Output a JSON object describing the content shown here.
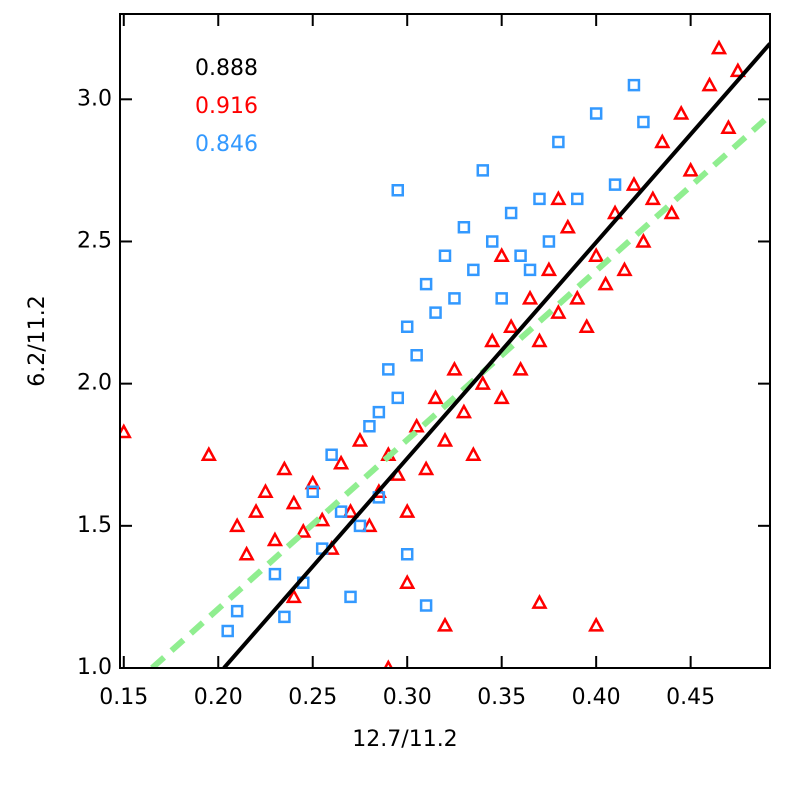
{
  "chart_data": {
    "type": "scatter",
    "xlabel": "12.7/11.2",
    "ylabel": "6.2/11.2",
    "xlim": [
      0.148,
      0.492
    ],
    "ylim": [
      1.0,
      3.3
    ],
    "xticks": [
      {
        "value": 0.15,
        "label": "0.15"
      },
      {
        "value": 0.2,
        "label": "0.20"
      },
      {
        "value": 0.25,
        "label": "0.25"
      },
      {
        "value": 0.3,
        "label": "0.30"
      },
      {
        "value": 0.35,
        "label": "0.35"
      },
      {
        "value": 0.4,
        "label": "0.40"
      },
      {
        "value": 0.45,
        "label": "0.45"
      }
    ],
    "yticks": [
      {
        "value": 1.0,
        "label": "1.0"
      },
      {
        "value": 1.5,
        "label": "1.5"
      },
      {
        "value": 2.0,
        "label": "2.0"
      },
      {
        "value": 2.5,
        "label": "2.5"
      },
      {
        "value": 3.0,
        "label": "3.0"
      }
    ],
    "annotations": [
      {
        "text": "0.888",
        "color": "#000000"
      },
      {
        "text": "0.916",
        "color": "#ff0000"
      },
      {
        "text": "0.846",
        "color": "#3399ff"
      }
    ],
    "series": [
      {
        "marker": "triangle",
        "color": "#ff0000",
        "x": [
          0.15,
          0.195,
          0.21,
          0.215,
          0.22,
          0.225,
          0.23,
          0.235,
          0.24,
          0.245,
          0.25,
          0.255,
          0.26,
          0.265,
          0.27,
          0.275,
          0.28,
          0.285,
          0.29,
          0.295,
          0.3,
          0.305,
          0.31,
          0.315,
          0.32,
          0.325,
          0.33,
          0.335,
          0.34,
          0.345,
          0.35,
          0.355,
          0.36,
          0.365,
          0.37,
          0.375,
          0.38,
          0.385,
          0.39,
          0.395,
          0.4,
          0.405,
          0.41,
          0.415,
          0.42,
          0.425,
          0.43,
          0.435,
          0.44,
          0.445,
          0.45,
          0.46,
          0.465,
          0.47,
          0.475,
          0.24,
          0.32,
          0.37,
          0.4,
          0.29,
          0.35,
          0.38,
          0.3
        ],
        "values": [
          1.83,
          1.75,
          1.5,
          1.4,
          1.55,
          1.62,
          1.45,
          1.7,
          1.58,
          1.48,
          1.65,
          1.52,
          1.42,
          1.72,
          1.55,
          1.8,
          1.5,
          1.62,
          1.75,
          1.68,
          1.55,
          1.85,
          1.7,
          1.95,
          1.8,
          2.05,
          1.9,
          1.75,
          2.0,
          2.15,
          1.95,
          2.2,
          2.05,
          2.3,
          2.15,
          2.4,
          2.25,
          2.55,
          2.3,
          2.2,
          2.45,
          2.35,
          2.6,
          2.4,
          2.7,
          2.5,
          2.65,
          2.85,
          2.6,
          2.95,
          2.75,
          3.05,
          3.18,
          2.9,
          3.1,
          1.25,
          1.15,
          1.23,
          1.15,
          1.0,
          2.45,
          2.65,
          1.3
        ]
      },
      {
        "marker": "square",
        "color": "#3399ff",
        "x": [
          0.205,
          0.21,
          0.23,
          0.235,
          0.245,
          0.25,
          0.255,
          0.26,
          0.265,
          0.27,
          0.275,
          0.28,
          0.285,
          0.29,
          0.295,
          0.3,
          0.305,
          0.31,
          0.315,
          0.32,
          0.325,
          0.33,
          0.335,
          0.34,
          0.345,
          0.35,
          0.355,
          0.36,
          0.365,
          0.37,
          0.375,
          0.38,
          0.39,
          0.4,
          0.41,
          0.42,
          0.425,
          0.295,
          0.3,
          0.31,
          0.285
        ],
        "values": [
          1.13,
          1.2,
          1.33,
          1.18,
          1.3,
          1.62,
          1.42,
          1.75,
          1.55,
          1.25,
          1.5,
          1.85,
          1.9,
          2.05,
          1.95,
          2.2,
          2.1,
          2.35,
          2.25,
          2.45,
          2.3,
          2.55,
          2.4,
          2.75,
          2.5,
          2.3,
          2.6,
          2.45,
          2.4,
          2.65,
          2.5,
          2.85,
          2.65,
          2.95,
          2.7,
          3.05,
          2.92,
          2.68,
          1.4,
          1.22,
          1.6
        ]
      },
      {
        "marker": "line",
        "color": "#90ee90",
        "dash": true,
        "x": [
          0.165,
          0.492
        ],
        "values": [
          1.0,
          2.944
        ]
      },
      {
        "marker": "line",
        "color": "#000000",
        "dash": false,
        "x": [
          0.203,
          0.492
        ],
        "values": [
          1.0,
          3.196
        ]
      }
    ]
  }
}
